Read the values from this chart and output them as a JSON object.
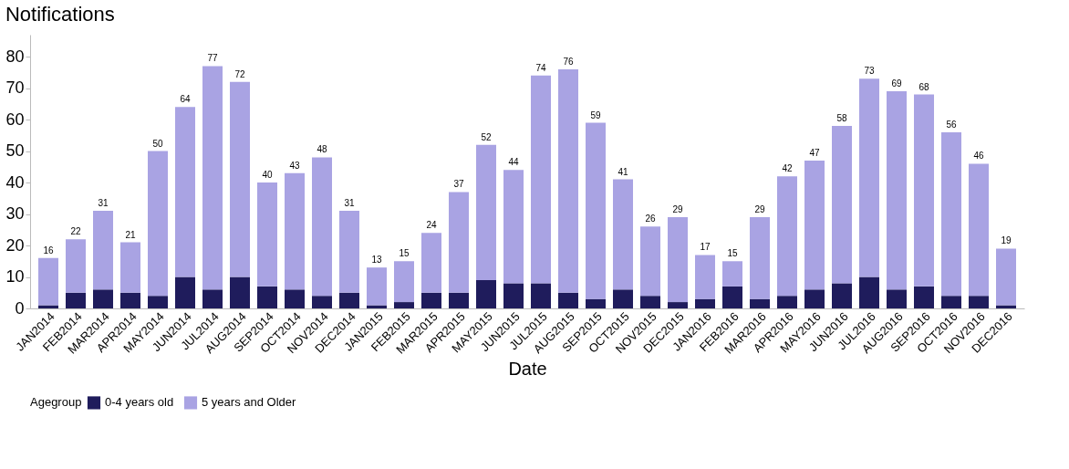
{
  "chart_data": {
    "type": "bar",
    "title": "Notifications",
    "xlabel": "Date",
    "legend_title": "Agegroup",
    "categories": [
      "JAN2014",
      "FEB2014",
      "MAR2014",
      "APR2014",
      "MAY2014",
      "JUN2014",
      "JUL2014",
      "AUG2014",
      "SEP2014",
      "OCT2014",
      "NOV2014",
      "DEC2014",
      "JAN2015",
      "FEB2015",
      "MAR2015",
      "APR2015",
      "MAY2015",
      "JUN2015",
      "JUL2015",
      "AUG2015",
      "SEP2015",
      "OCT2015",
      "NOV2015",
      "DEC2015",
      "JAN2016",
      "FEB2016",
      "MAR2016",
      "APR2016",
      "MAY2016",
      "JUN2016",
      "JUL2016",
      "AUG2016",
      "SEP2016",
      "OCT2016",
      "NOV2016",
      "DEC2016"
    ],
    "stacked": true,
    "series": [
      {
        "name": "0-4 years old",
        "color": "#1f1c5c",
        "values": [
          1,
          5,
          6,
          5,
          4,
          10,
          6,
          10,
          7,
          6,
          4,
          5,
          1,
          2,
          5,
          5,
          9,
          8,
          8,
          5,
          3,
          6,
          4,
          2,
          3,
          7,
          3,
          4,
          6,
          8,
          10,
          6,
          7,
          4,
          4,
          1
        ]
      },
      {
        "name": "5 years and Older",
        "color": "#a9a3e3",
        "values": [
          15,
          17,
          25,
          16,
          46,
          54,
          71,
          62,
          33,
          37,
          44,
          26,
          12,
          13,
          19,
          32,
          43,
          36,
          66,
          71,
          56,
          35,
          22,
          27,
          14,
          8,
          26,
          38,
          41,
          50,
          63,
          63,
          61,
          52,
          42,
          18
        ]
      }
    ],
    "totals": [
      "16",
      "22",
      "31",
      "21",
      "50",
      "64",
      "77",
      "72",
      "40",
      "43",
      "48",
      "31",
      "13",
      "15",
      "24",
      "37",
      "52",
      "44",
      "74",
      "76",
      "59",
      "41",
      "26",
      "29",
      "17",
      "15",
      "29",
      "42",
      "47",
      "58",
      "73",
      "69",
      "68",
      "56",
      "46",
      "19"
    ],
    "ylim": [
      0,
      87
    ],
    "yticks": [
      0,
      10,
      20,
      30,
      40,
      50,
      60,
      70,
      80
    ],
    "grid": false,
    "legend": "bottom"
  }
}
